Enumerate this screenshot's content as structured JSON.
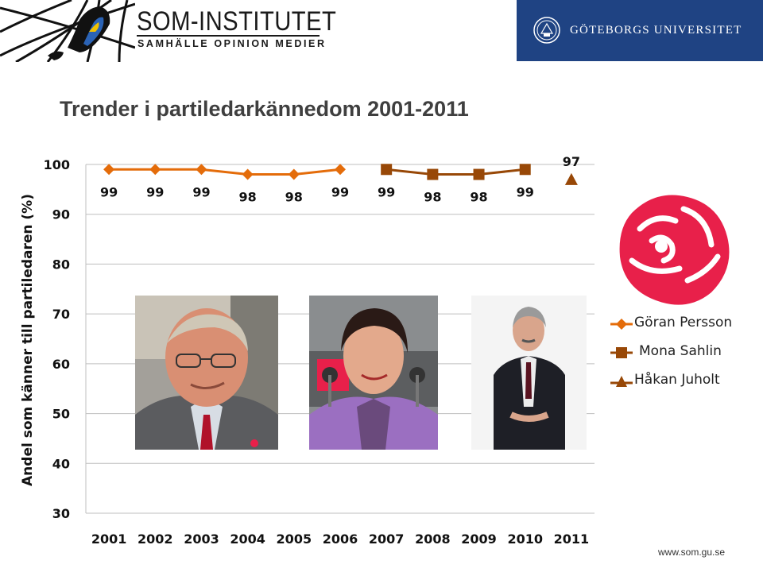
{
  "header": {
    "som_title": "SOM-INSTITUTET",
    "som_subtitle": "SAMHÄLLE  OPINION  MEDIER",
    "university": "GÖTEBORGS UNIVERSITET"
  },
  "slide_title": "Trender i partiledarkännedom 2001-2011",
  "footer_url": "www.som.gu.se",
  "colors": {
    "persson": "#e46c0a",
    "sahlin": "#984807",
    "juholt": "#984807",
    "gu_blue": "#1f4383",
    "rose": "#e8204a"
  },
  "icons": {
    "som_logo": "map-globe-icon",
    "gu_seal": "university-seal-icon",
    "party_logo": "rose-icon"
  },
  "chart_data": {
    "type": "line",
    "title": "",
    "xlabel": "",
    "ylabel": "Andel som känner till partiledaren (%)",
    "categories": [
      "2001",
      "2002",
      "2003",
      "2004",
      "2005",
      "2006",
      "2007",
      "2008",
      "2009",
      "2010",
      "2011"
    ],
    "ylim": [
      30,
      100
    ],
    "yticks": [
      30,
      40,
      50,
      60,
      70,
      80,
      90,
      100
    ],
    "grid": true,
    "legend_position": "right",
    "series": [
      {
        "name": "Göran Persson",
        "marker": "diamond",
        "color": "#e46c0a",
        "values": [
          99,
          99,
          99,
          98,
          98,
          99,
          null,
          null,
          null,
          null,
          null
        ],
        "labels": [
          "99",
          "99",
          "99",
          "98",
          "98",
          "99",
          "",
          "",
          "",
          "",
          ""
        ]
      },
      {
        "name": "Mona Sahlin",
        "marker": "square",
        "color": "#984807",
        "values": [
          null,
          null,
          null,
          null,
          null,
          null,
          99,
          98,
          98,
          99,
          null
        ],
        "labels": [
          "",
          "",
          "",
          "",
          "",
          "",
          "99",
          "98",
          "98",
          "99",
          ""
        ]
      },
      {
        "name": "Håkan Juholt",
        "marker": "triangle",
        "color": "#984807",
        "values": [
          null,
          null,
          null,
          null,
          null,
          null,
          null,
          null,
          null,
          null,
          97
        ],
        "labels": [
          "",
          "",
          "",
          "",
          "",
          "",
          "",
          "",
          "",
          "",
          "97"
        ]
      }
    ]
  }
}
